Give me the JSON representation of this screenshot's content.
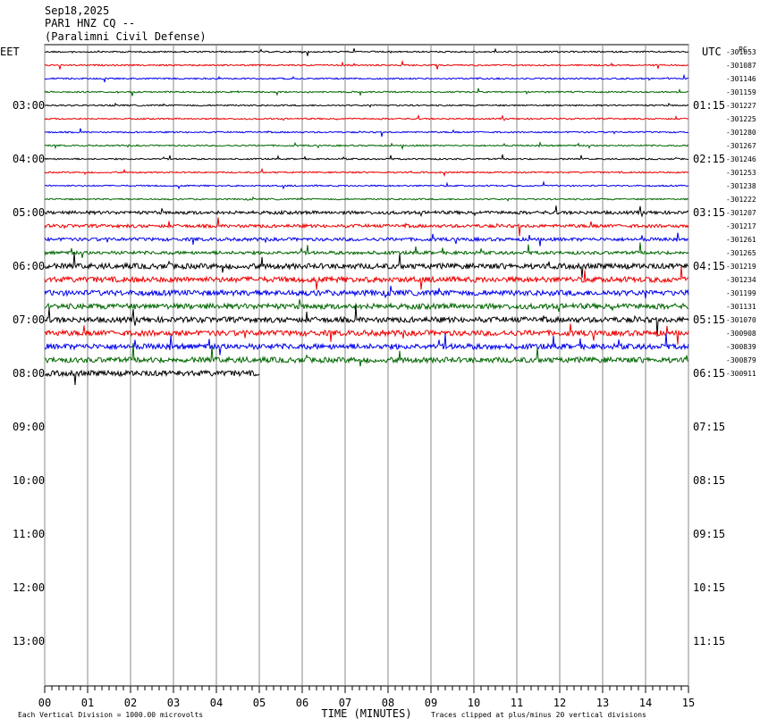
{
  "header": {
    "lines": [
      "Sep18,2025",
      "PAR1 HNZ CQ --",
      "(Paralimni Civil Defense)"
    ]
  },
  "left_zone": "EET",
  "right_zone": "UTC",
  "corner_note": "PC",
  "left_hours": [
    "03:00",
    "04:00",
    "05:00",
    "06:00",
    "07:00",
    "08:00",
    "09:00",
    "10:00",
    "11:00",
    "12:00",
    "13:00"
  ],
  "right_hours": [
    "01:15",
    "02:15",
    "03:15",
    "04:15",
    "05:15",
    "06:15",
    "07:15",
    "08:15",
    "09:15",
    "10:15",
    "11:15"
  ],
  "trace_labels": [
    "-301053",
    "-301087",
    "-301146",
    "-301159",
    "-301227",
    "-301225",
    "-301280",
    "-301267",
    "-301246",
    "-301253",
    "-301238",
    "-301222",
    "-301207",
    "-301217",
    "-301261",
    "-301265",
    "-301219",
    "-301234",
    "-301199",
    "-301131",
    "-301070",
    "-300908",
    "-300839",
    "-300879",
    "-300911"
  ],
  "x_tick_labels": [
    "00",
    "01",
    "02",
    "03",
    "04",
    "05",
    "06",
    "07",
    "08",
    "09",
    "10",
    "11",
    "12",
    "13",
    "14",
    "15"
  ],
  "x_title": "TIME (MINUTES)",
  "footer_left": "Each Vertical Division = 1000.00 microvolts",
  "footer_right": "Traces clipped at plus/minus 20 vertical divisions"
}
